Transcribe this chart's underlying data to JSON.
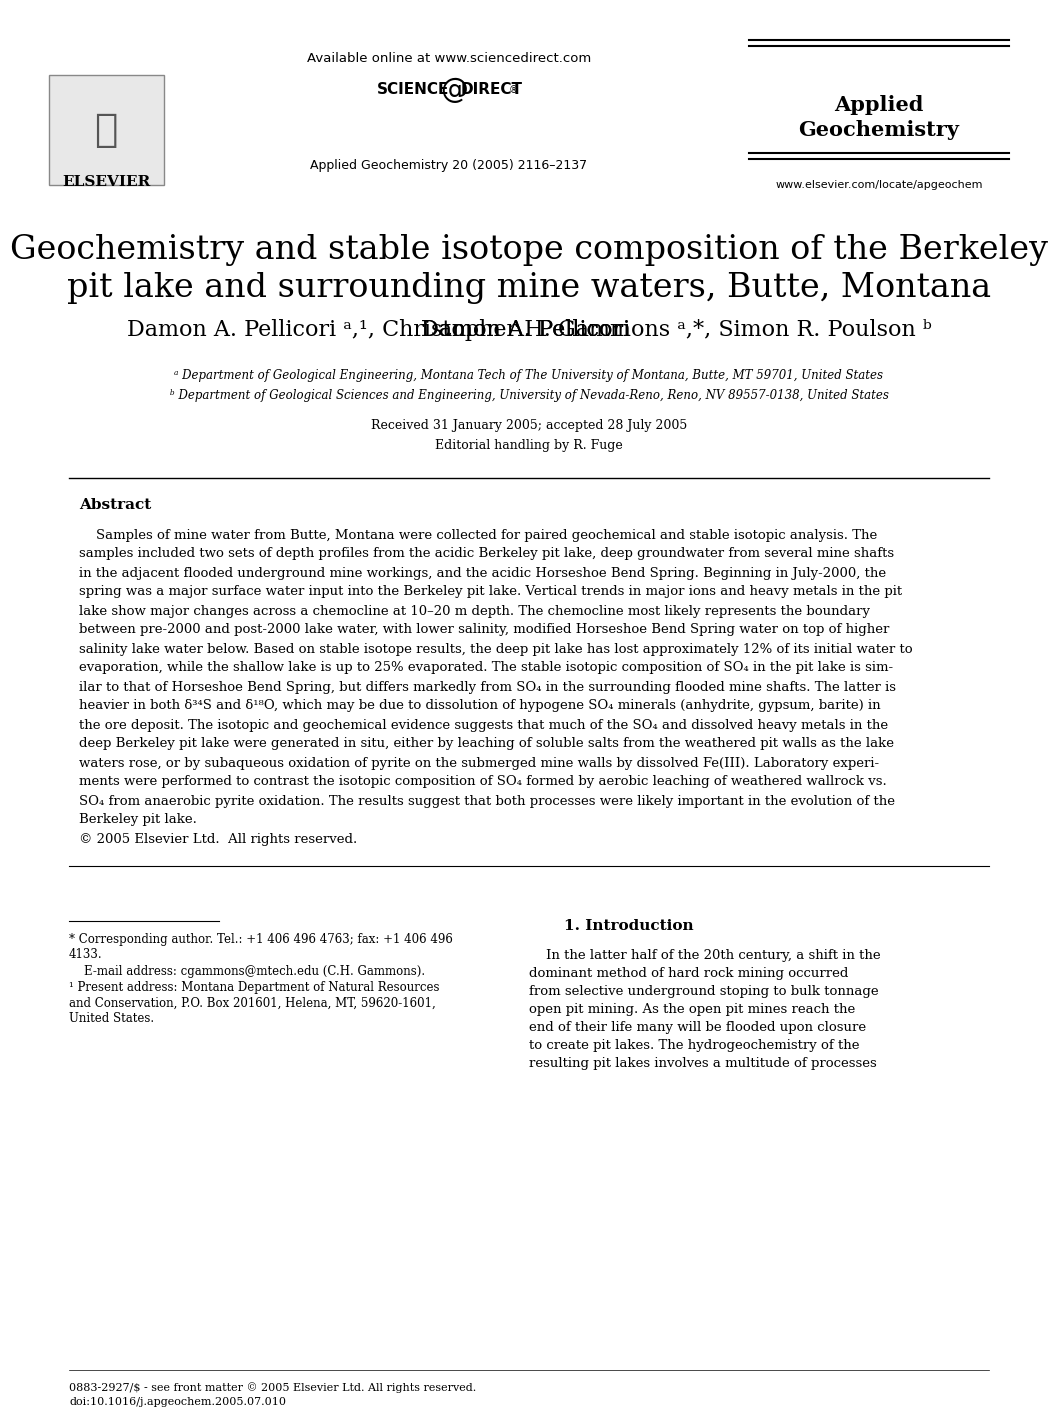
{
  "title_line1": "Geochemistry and stable isotope composition of the Berkeley",
  "title_line2": "pit lake and surrounding mine waters, Butte, Montana",
  "authors": "Damon A. Pellicori  ᵃʹ¹, Christopher H. Gammons  ᵃʹ*, Simon R. Poulson  ᵇ",
  "affil_a": "ᵃ Department of Geological Engineering, Montana Tech of The University of Montana, Butte, MT 59701, United States",
  "affil_b": "ᵇ Department of Geological Sciences and Engineering, University of Nevada-Reno, Reno, NV 89557-0138, United States",
  "received": "Received 31 January 2005; accepted 28 July 2005",
  "editorial": "Editorial handling by R. Fuge",
  "available_online": "Available online at www.sciencedirect.com",
  "journal_ref": "Applied Geochemistry 20 (2005) 2116–2137",
  "journal_url": "www.elsevier.com/locate/apgeochem",
  "journal_name_line1": "Applied",
  "journal_name_line2": "Geochemistry",
  "abstract_title": "Abstract",
  "abstract_text": "    Samples of mine water from Butte, Montana were collected for paired geochemical and stable isotopic analysis. The samples included two sets of depth profiles from the acidic Berkeley pit lake, deep groundwater from several mine shafts in the adjacent flooded underground mine workings, and the acidic Horseshoe Bend Spring. Beginning in July-2000, the spring was a major surface water input into the Berkeley pit lake. Vertical trends in major ions and heavy metals in the pit lake show major changes across a chemocline at 10–20 m depth. The chemocline most likely represents the boundary between pre-2000 and post-2000 lake water, with lower salinity, modified Horseshoe Bend Spring water on top of higher salinity lake water below. Based on stable isotope results, the deep pit lake has lost approximately 12% of its initial water to evaporation, while the shallow lake is up to 25% evaporated. The stable isotopic composition of SO₄ in the pit lake is similar to that of Horseshoe Bend Spring, but differs markedly from SO₄ in the surrounding flooded mine shafts. The latter is heavier in both δ³⁴S and δ¹⁸O, which may be due to dissolution of hypogene SO₄ minerals (anhydrite, gypsum, barite) in the ore deposit. The isotopic and geochemical evidence suggests that much of the SO₄ and dissolved heavy metals in the deep Berkeley pit lake were generated in situ, either by leaching of soluble salts from the weathered pit walls as the lake waters rose, or by subaqueous oxidation of pyrite on the submerged mine walls by dissolved Fe(III). Laboratory experiments were performed to contrast the isotopic composition of SO₄ formed by aerobic leaching of weathered wallrock vs. SO₄ from anaerobic pyrite oxidation. The results suggest that both processes were likely important in the evolution of the Berkeley pit lake.\n© 2005 Elsevier Ltd. All rights reserved.",
  "section1_title": "1. Introduction",
  "section1_text": "    In the latter half of the 20th century, a shift in the dominant method of hard rock mining occurred from selective underground stoping to bulk tonnage open pit mining. As the open pit mines reach the end of their life many will be flooded upon closure to create pit lakes. The hydrogeochemistry of the resulting pit lakes involves a multitude of processes",
  "footnote_corresponding": "* Corresponding author. Tel.: +1 406 496 4763; fax: +1 406 496 4133.",
  "footnote_email": "E-mail address: cgammons@mtech.edu (C.H. Gammons).",
  "footnote_present": "¹ Present address: Montana Department of Natural Resources and Conservation, P.O. Box 201601, Helena, MT, 59620-1601, United States.",
  "footer_issn": "0883-2927/$ - see front matter © 2005 Elsevier Ltd. All rights reserved.",
  "footer_doi": "doi:10.1016/j.apgeochem.2005.07.010",
  "bg_color": "#ffffff",
  "text_color": "#000000"
}
